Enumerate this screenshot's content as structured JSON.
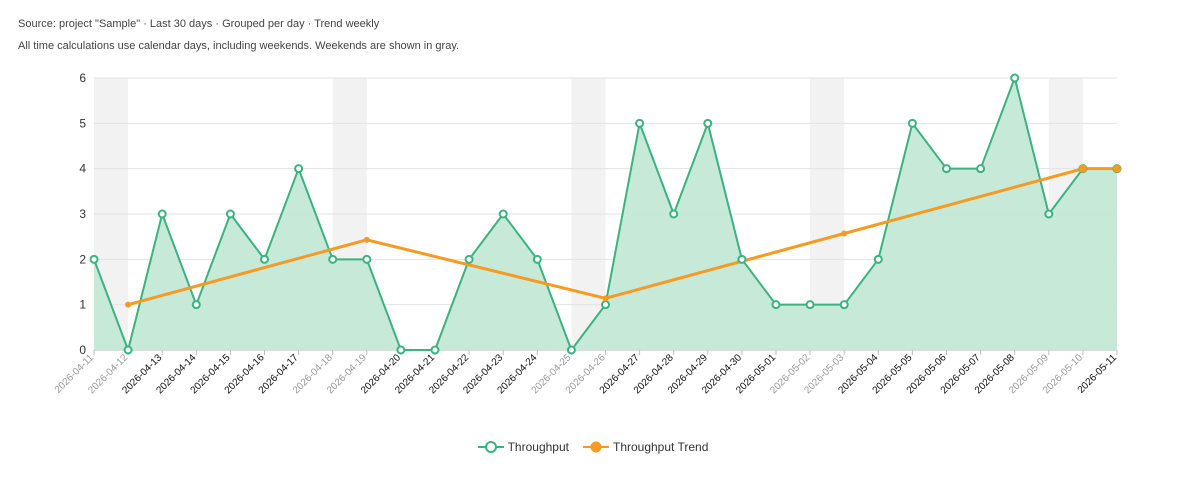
{
  "header": {
    "source": "Source: project \"Sample\" · Last 30 days · Grouped per day · Trend weekly",
    "note": "All time calculations use calendar days, including weekends. Weekends are shown in gray."
  },
  "legend": [
    {
      "label": "Throughput",
      "color": "#3bb27f"
    },
    {
      "label": "Throughput Trend",
      "color": "#f59a23"
    }
  ],
  "chart_data": {
    "type": "line",
    "categories": [
      "2026-04-11",
      "2026-04-12",
      "2026-04-13",
      "2026-04-14",
      "2026-04-15",
      "2026-04-16",
      "2026-04-17",
      "2026-04-18",
      "2026-04-19",
      "2026-04-20",
      "2026-04-21",
      "2026-04-22",
      "2026-04-23",
      "2026-04-24",
      "2026-04-25",
      "2026-04-26",
      "2026-04-27",
      "2026-04-28",
      "2026-04-29",
      "2026-04-30",
      "2026-05-01",
      "2026-05-02",
      "2026-05-03",
      "2026-05-04",
      "2026-05-05",
      "2026-05-06",
      "2026-05-07",
      "2026-05-08",
      "2026-05-09",
      "2026-05-10",
      "2026-05-11"
    ],
    "weekend_categories": [
      "2026-04-11",
      "2026-04-12",
      "2026-04-18",
      "2026-04-19",
      "2026-04-25",
      "2026-04-26",
      "2026-05-02",
      "2026-05-03",
      "2026-05-09",
      "2026-05-10"
    ],
    "series": [
      {
        "name": "Throughput",
        "area": true,
        "color": "#3bb27f",
        "fill": "#c3e8d6",
        "values": [
          2,
          0,
          3,
          1,
          3,
          2,
          4,
          2,
          2,
          0,
          0,
          2,
          3,
          2,
          0,
          1,
          5,
          3,
          5,
          2,
          1,
          1,
          1,
          2,
          5,
          4,
          4,
          6,
          3,
          4,
          4
        ]
      },
      {
        "name": "Throughput Trend",
        "color": "#f59a23",
        "points": [
          {
            "x": "2026-04-12",
            "y": 1.0
          },
          {
            "x": "2026-04-19",
            "y": 2.43
          },
          {
            "x": "2026-04-26",
            "y": 1.14
          },
          {
            "x": "2026-05-03",
            "y": 2.57
          },
          {
            "x": "2026-05-10",
            "y": 4.0
          },
          {
            "x": "2026-05-11",
            "y": 4.0
          }
        ]
      }
    ],
    "ylim": [
      0,
      6
    ],
    "yticks": [
      0,
      1,
      2,
      3,
      4,
      5,
      6
    ],
    "grid": true,
    "legend_position": "bottom"
  }
}
